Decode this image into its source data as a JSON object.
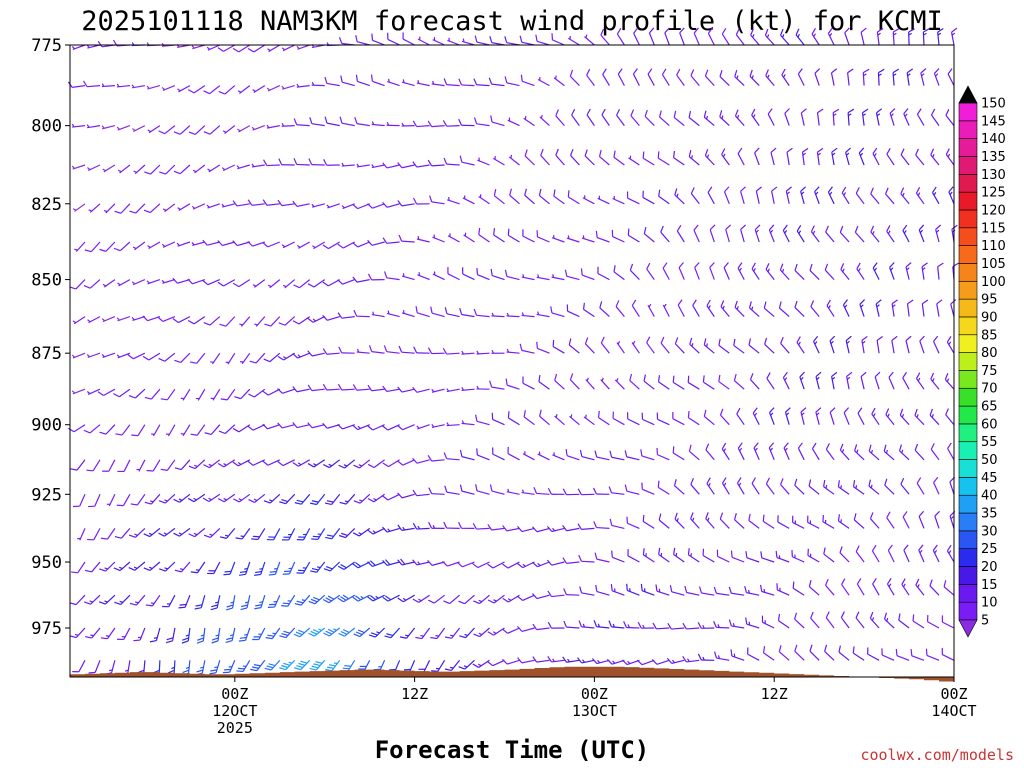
{
  "chart_data": {
    "type": "wind-barb-time-height",
    "title": "2025101118 NAM3KM forecast wind profile (kt) for KCMI",
    "xlabel": "Forecast Time (UTC)",
    "y_unit": "hPa",
    "y_range": [
      994,
      775
    ],
    "y_ticks": [
      775,
      800,
      825,
      850,
      875,
      900,
      925,
      950,
      975
    ],
    "x_range_hours": [
      -5,
      54
    ],
    "x_ticks": [
      {
        "hour": 6,
        "lines": [
          "00Z",
          "12OCT",
          "2025"
        ]
      },
      {
        "hour": 18,
        "lines": [
          "12Z"
        ]
      },
      {
        "hour": 30,
        "lines": [
          "00Z",
          "13OCT"
        ]
      },
      {
        "hour": 42,
        "lines": [
          "12Z"
        ]
      },
      {
        "hour": 54,
        "lines": [
          "00Z",
          "14OCT"
        ]
      }
    ],
    "time_step_hours": 1,
    "n_times": 59,
    "pressure_levels": [
      775,
      787.5,
      800,
      812.5,
      825,
      837.5,
      850,
      862.5,
      875,
      887.5,
      900,
      912.5,
      925,
      937.5,
      950,
      962.5,
      975,
      987.5
    ],
    "wind_speed_anchors_kt": [
      {
        "hour": -4,
        "low_level": 12,
        "mid_level": 7,
        "upper_level": 5
      },
      {
        "hour": 2,
        "low_level": 22,
        "mid_level": 9,
        "upper_level": 6
      },
      {
        "hour": 8,
        "low_level": 32,
        "mid_level": 10,
        "upper_level": 6
      },
      {
        "hour": 12,
        "low_level": 38,
        "mid_level": 12,
        "upper_level": 7
      },
      {
        "hour": 16,
        "low_level": 28,
        "mid_level": 10,
        "upper_level": 8
      },
      {
        "hour": 20,
        "low_level": 15,
        "mid_level": 8,
        "upper_level": 8
      },
      {
        "hour": 26,
        "low_level": 12,
        "mid_level": 8,
        "upper_level": 9
      },
      {
        "hour": 34,
        "low_level": 15,
        "mid_level": 9,
        "upper_level": 10
      },
      {
        "hour": 40,
        "low_level": 12,
        "mid_level": 12,
        "upper_level": 12
      },
      {
        "hour": 46,
        "low_level": 10,
        "mid_level": 14,
        "upper_level": 14
      },
      {
        "hour": 52,
        "low_level": 10,
        "mid_level": 12,
        "upper_level": 14
      }
    ],
    "wind_direction_anchors_deg": [
      {
        "hour": -4,
        "low_level": 200,
        "mid_level": 230,
        "upper_level": 250
      },
      {
        "hour": 6,
        "low_level": 200,
        "mid_level": 225,
        "upper_level": 250
      },
      {
        "hour": 14,
        "low_level": 210,
        "mid_level": 250,
        "upper_level": 270
      },
      {
        "hour": 22,
        "low_level": 230,
        "mid_level": 280,
        "upper_level": 290
      },
      {
        "hour": 30,
        "low_level": 250,
        "mid_level": 300,
        "upper_level": 310
      },
      {
        "hour": 38,
        "low_level": 280,
        "mid_level": 320,
        "upper_level": 330
      },
      {
        "hour": 46,
        "low_level": 300,
        "mid_level": 330,
        "upper_level": 340
      },
      {
        "hour": 54,
        "low_level": 310,
        "mid_level": 335,
        "upper_level": 340
      }
    ],
    "surface_pressure_hpa": [
      {
        "hour": -5,
        "p": 993
      },
      {
        "hour": 0,
        "p": 992
      },
      {
        "hour": 5,
        "p": 993
      },
      {
        "hour": 10,
        "p": 992
      },
      {
        "hour": 15,
        "p": 991
      },
      {
        "hour": 20,
        "p": 992
      },
      {
        "hour": 25,
        "p": 991
      },
      {
        "hour": 28,
        "p": 990
      },
      {
        "hour": 32,
        "p": 990
      },
      {
        "hour": 36,
        "p": 991
      },
      {
        "hour": 40,
        "p": 992
      },
      {
        "hour": 44,
        "p": 993
      },
      {
        "hour": 48,
        "p": 994
      },
      {
        "hour": 52,
        "p": 995
      },
      {
        "hour": 54,
        "p": 996
      }
    ],
    "colorbar": {
      "levels": [
        5,
        10,
        15,
        20,
        25,
        30,
        35,
        40,
        45,
        50,
        55,
        60,
        65,
        70,
        75,
        80,
        85,
        90,
        95,
        100,
        105,
        110,
        115,
        120,
        125,
        130,
        135,
        140,
        145,
        150
      ],
      "colors": [
        "#7a1cf5",
        "#6a1af0",
        "#4818e8",
        "#2b2bf0",
        "#2a57f2",
        "#2a7ef5",
        "#1fa0f5",
        "#16c3ee",
        "#18e0d6",
        "#19f0b4",
        "#1ff080",
        "#22e84a",
        "#38e02a",
        "#7ae81f",
        "#bdf01a",
        "#f0f020",
        "#f5d81b",
        "#f5b91a",
        "#f59c1a",
        "#f5841b",
        "#f56a1b",
        "#f54e1c",
        "#f2301f",
        "#e81a2a",
        "#e0194f",
        "#e01a74",
        "#e51b97",
        "#ea1db9",
        "#f01ed8",
        "#f520f0"
      ],
      "over_color": "#000000",
      "under_color": "#8a2be2"
    },
    "terrain_color": "#a0522d"
  },
  "watermark": "coolwx.com/models"
}
